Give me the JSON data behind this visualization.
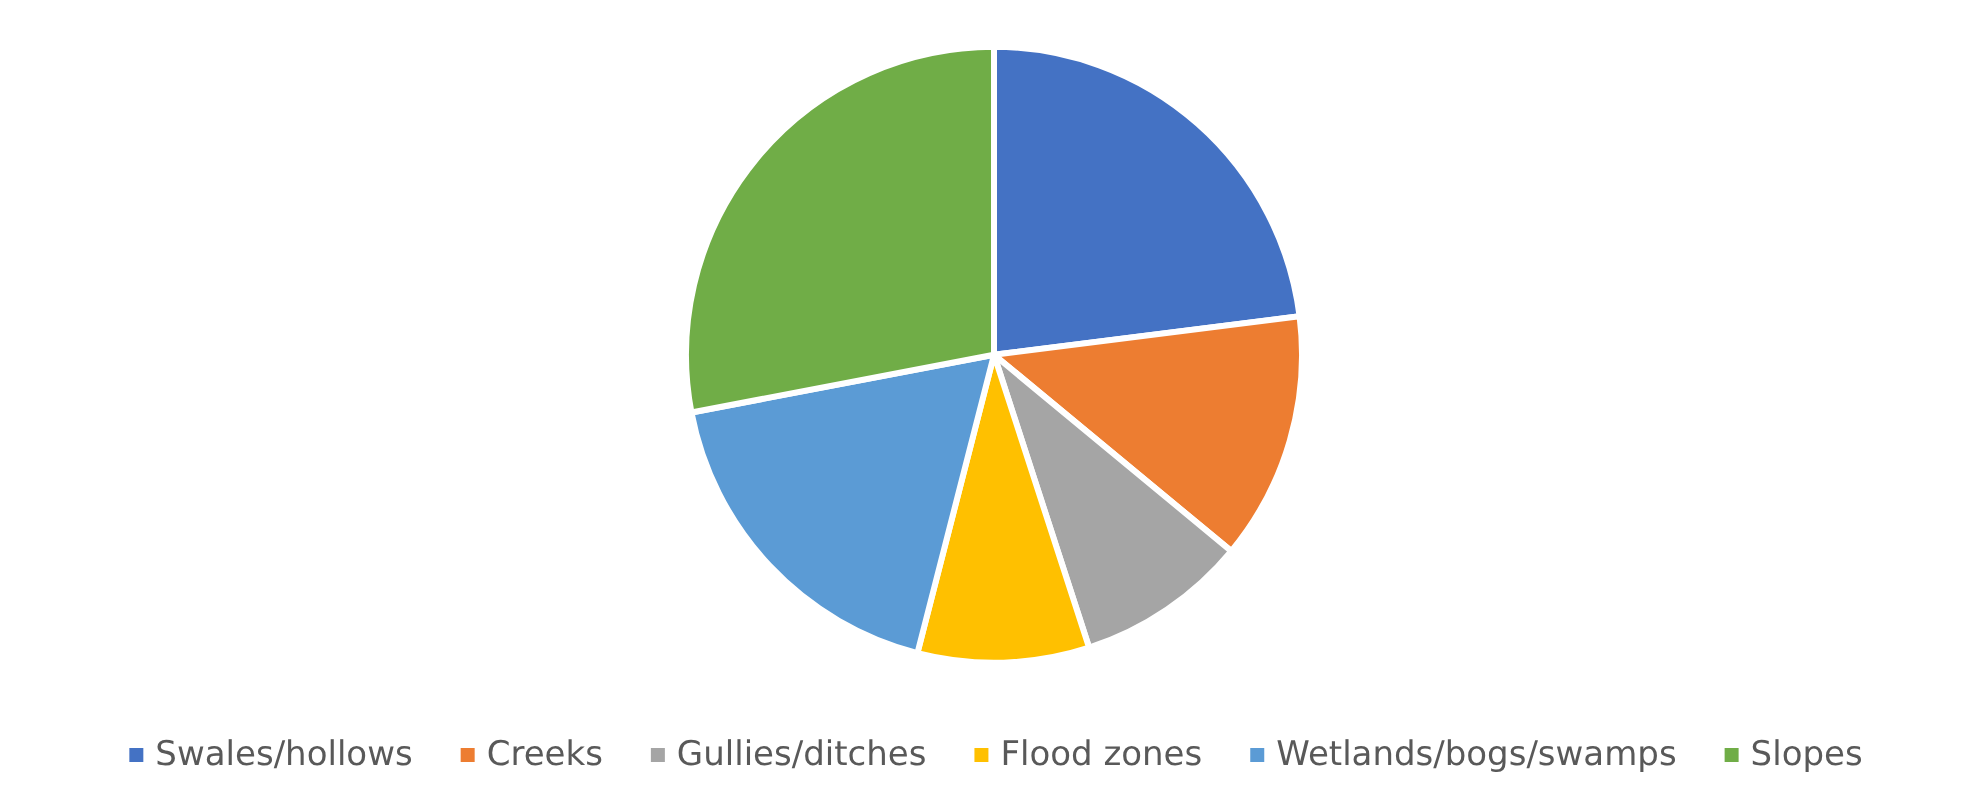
{
  "chart_data": {
    "type": "pie",
    "categories": [
      "Swales/hollows",
      "Creeks",
      "Gullies/ditches",
      "Flood zones",
      "Wetlands/bogs/swamps",
      "Slopes"
    ],
    "values": [
      23,
      13,
      9,
      9,
      18,
      28
    ],
    "colors": [
      "#4472c4",
      "#ed7d31",
      "#a5a5a5",
      "#ffc000",
      "#5b9bd5",
      "#70ad47"
    ],
    "legend": "bottom"
  }
}
